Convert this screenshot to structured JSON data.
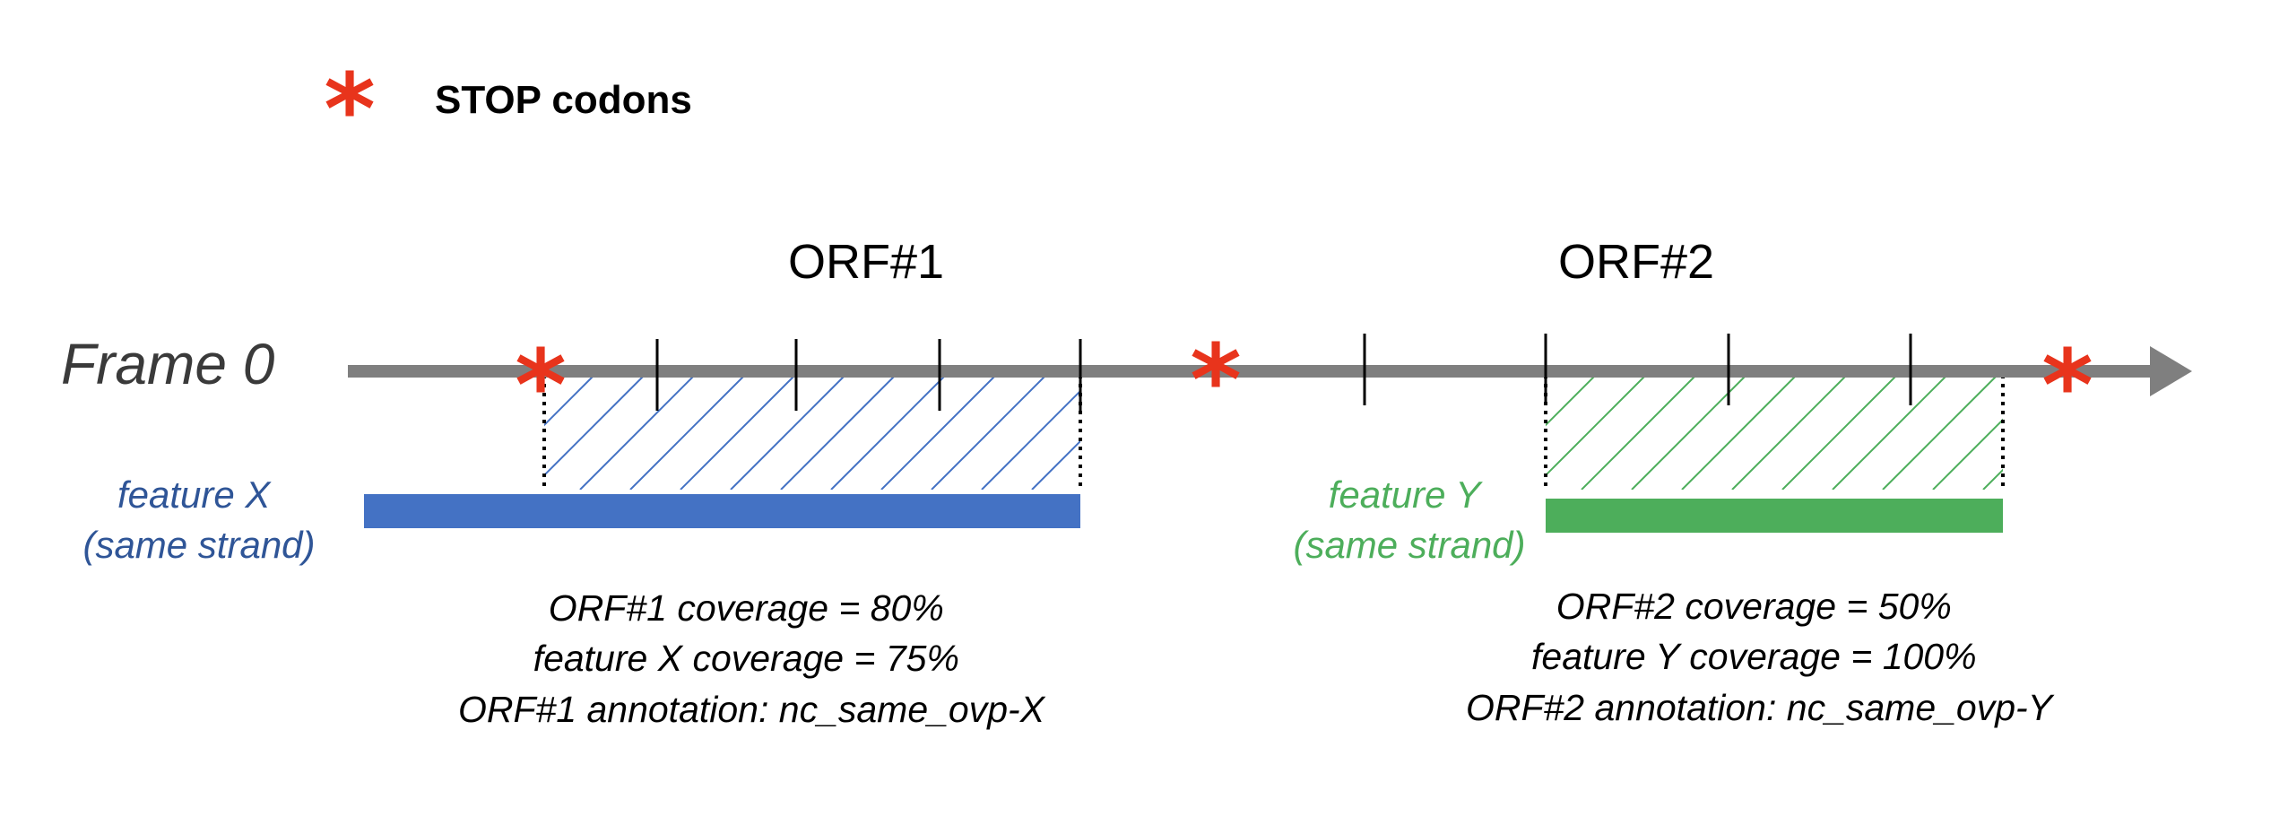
{
  "legend": {
    "symbol": "*",
    "label": "STOP codons"
  },
  "frame": {
    "label": "Frame 0"
  },
  "orfs": [
    {
      "label": "ORF#1"
    },
    {
      "label": "ORF#2"
    }
  ],
  "features": [
    {
      "line1": "feature X",
      "line2": "(same strand)",
      "color": "#4472C4"
    },
    {
      "line1": "feature Y",
      "line2": "(same strand)",
      "color": "#4DAE5B"
    }
  ],
  "stats": [
    {
      "orf_coverage": "ORF#1 coverage = 80%",
      "feature_coverage": "feature X coverage = 75%",
      "annotation": "ORF#1 annotation: nc_same_ovp-X"
    },
    {
      "orf_coverage": "ORF#2 coverage = 50%",
      "feature_coverage": "feature Y coverage = 100%",
      "annotation": "ORF#2 annotation: nc_same_ovp-Y"
    }
  ],
  "colors": {
    "stop": "#E8341C",
    "axis": "#7F7F7F",
    "feature_x": "#4472C4",
    "feature_y": "#4DAE5B",
    "feature_x_label": "#2F5597",
    "feature_y_label": "#4DAE5B"
  }
}
